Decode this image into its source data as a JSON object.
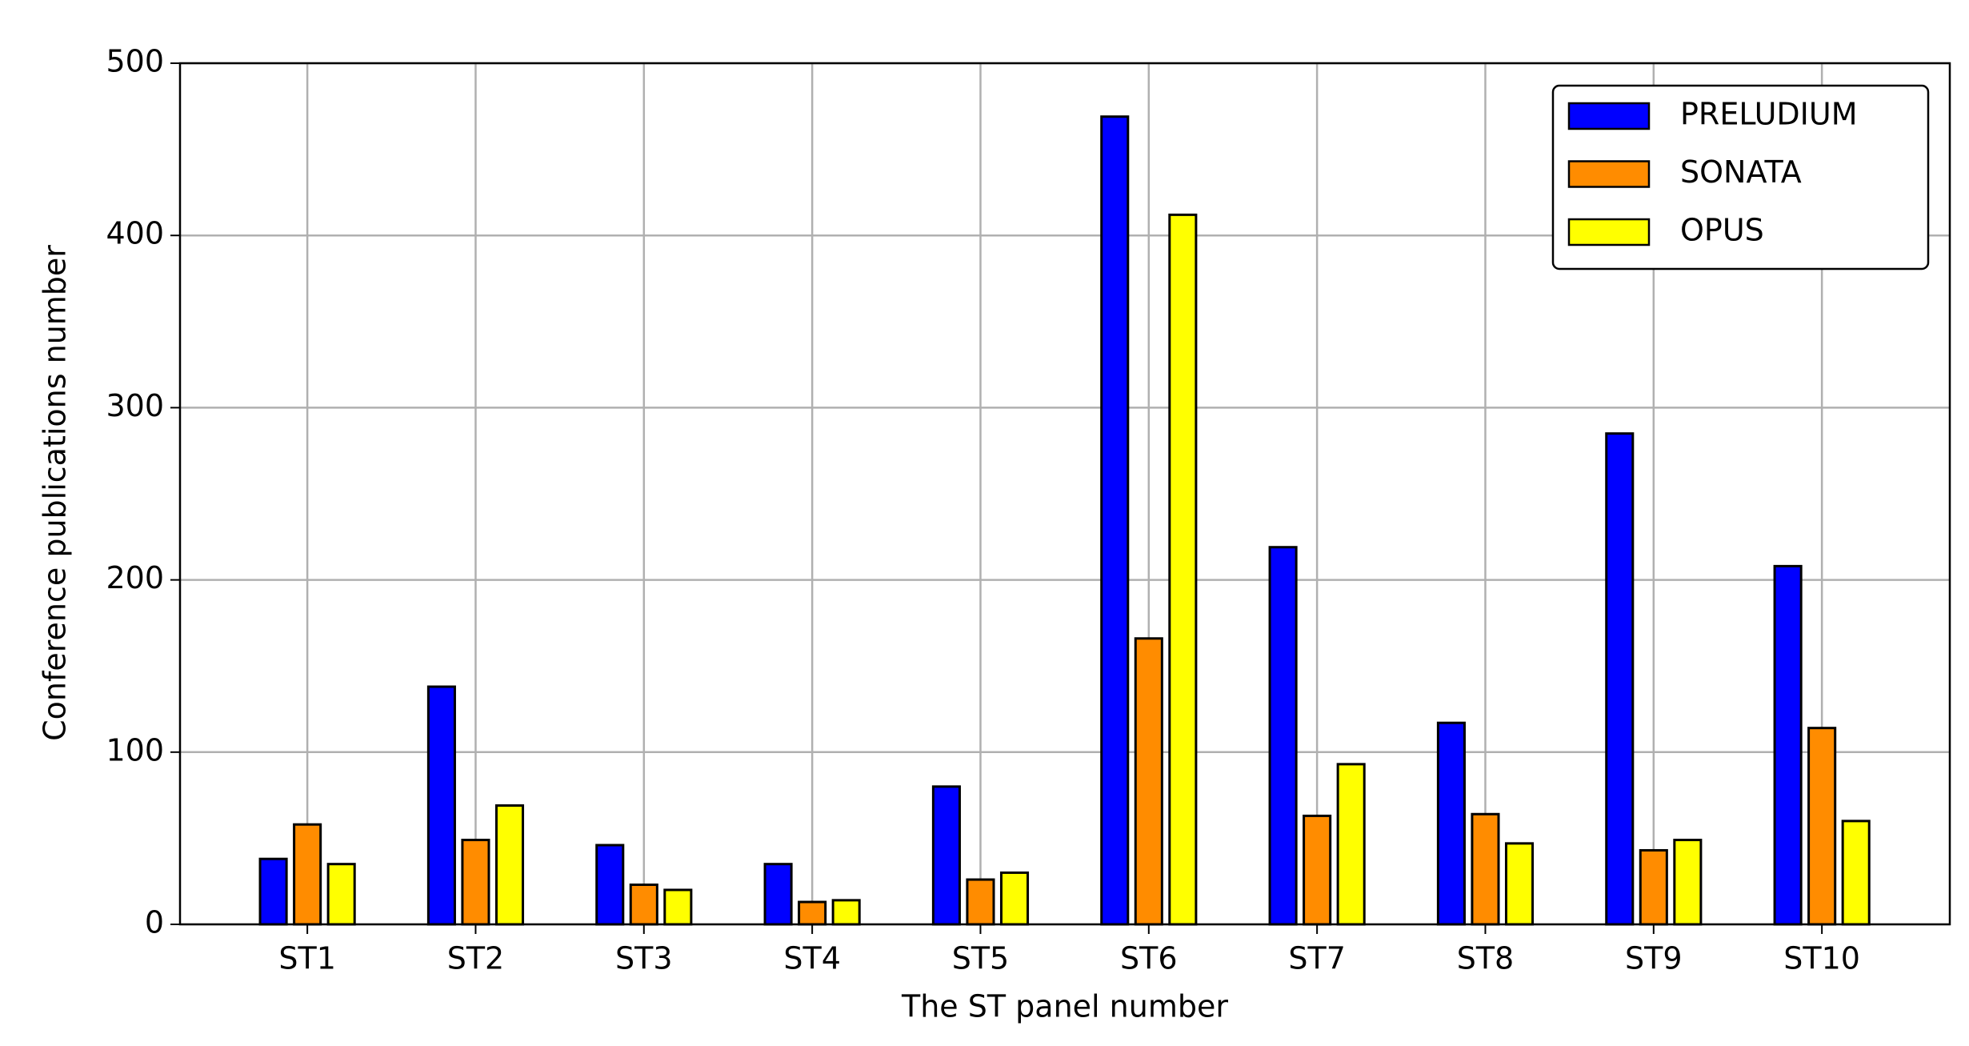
{
  "chart_data": {
    "type": "bar",
    "x_label": "The ST panel number",
    "y_label": "Conference publications number",
    "categories": [
      "ST1",
      "ST2",
      "ST3",
      "ST4",
      "ST5",
      "ST6",
      "ST7",
      "ST8",
      "ST9",
      "ST10"
    ],
    "series": [
      {
        "name": "PRELUDIUM",
        "color": "#0000ff",
        "values": [
          38,
          138,
          46,
          35,
          80,
          469,
          219,
          117,
          285,
          208
        ]
      },
      {
        "name": "SONATA",
        "color": "#ff8c00",
        "values": [
          58,
          49,
          23,
          13,
          26,
          166,
          63,
          64,
          43,
          114
        ]
      },
      {
        "name": "OPUS",
        "color": "#ffff00",
        "values": [
          35,
          69,
          20,
          14,
          30,
          412,
          93,
          47,
          49,
          60
        ]
      }
    ],
    "ylim": [
      0,
      500
    ],
    "yticks": [
      0,
      100,
      200,
      300,
      400,
      500
    ],
    "grid": true,
    "legend": "upper right"
  }
}
